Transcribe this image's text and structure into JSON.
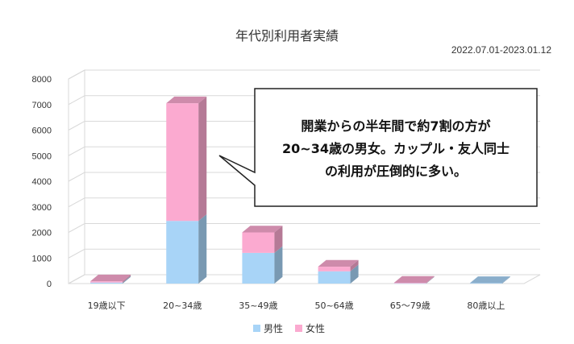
{
  "chart_data": {
    "type": "bar",
    "stacked": true,
    "style": "3d-column",
    "title": "年代別利用者実績",
    "period": "2022.07.01-2023.01.12",
    "categories": [
      "19歳以下",
      "20~34歳",
      "35~49歳",
      "50~64歳",
      "65〜79歳",
      "80歳以上"
    ],
    "series": [
      {
        "name": "男性",
        "values": [
          40,
          2450,
          1200,
          480,
          10,
          20
        ],
        "color": "#a8d4f7"
      },
      {
        "name": "女性",
        "values": [
          50,
          4600,
          800,
          180,
          20,
          0
        ],
        "color": "#fbaad0"
      }
    ],
    "ylim": [
      0,
      8000
    ],
    "yticks": [
      0,
      1000,
      2000,
      3000,
      4000,
      5000,
      6000,
      7000,
      8000
    ],
    "grid": true,
    "legend_position": "bottom",
    "annotation": {
      "lines": [
        "開業からの半年間で約7割の方が",
        "20~34歳の男女。カップル・友人同士",
        "の利用が圧倒的に多い。"
      ]
    }
  }
}
